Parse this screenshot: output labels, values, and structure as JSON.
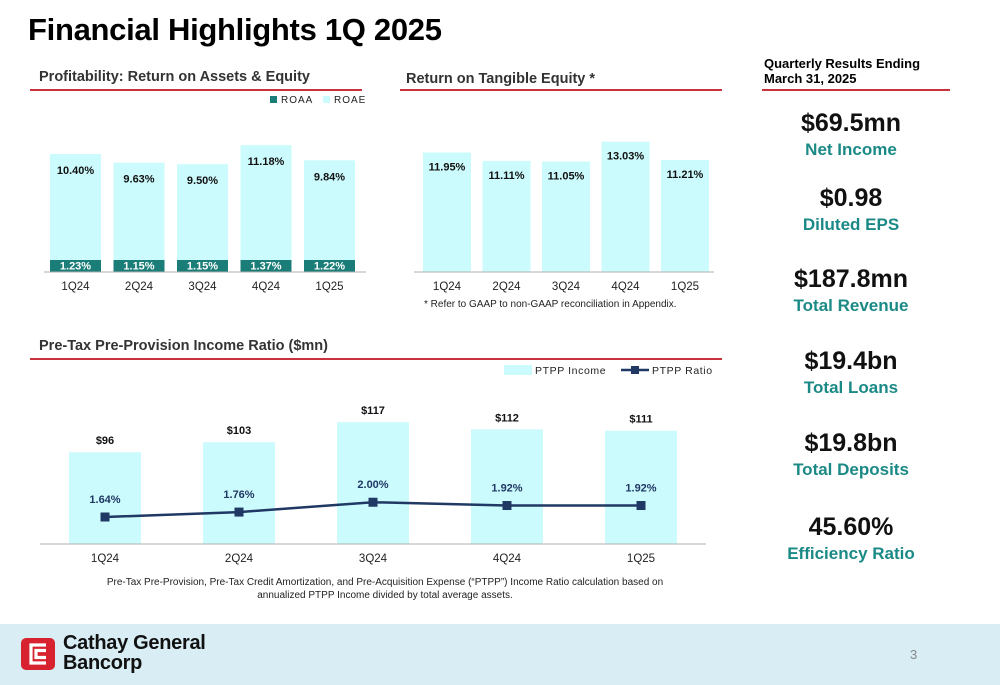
{
  "title": "Financial Highlights 1Q 2025",
  "sections": {
    "profitability": "Profitability: Return on Assets & Equity",
    "rote": "Return on Tangible Equity *",
    "pptp": "Pre-Tax Pre-Provision Income Ratio ($mn)"
  },
  "kpi": {
    "header_line1": "Quarterly Results Ending",
    "header_line2": "March 31, 2025",
    "items": [
      {
        "value": "$69.5mn",
        "label": "Net Income"
      },
      {
        "value": "$0.98",
        "label": "Diluted EPS"
      },
      {
        "value": "$187.8mn",
        "label": "Total Revenue"
      },
      {
        "value": "$19.4bn",
        "label": "Total Loans"
      },
      {
        "value": "$19.8bn",
        "label": "Total Deposits"
      },
      {
        "value": "45.60%",
        "label": "Efficiency Ratio"
      }
    ]
  },
  "footnotes": {
    "rote_note": "* Refer to GAAP to non-GAAP reconciliation in Appendix.",
    "pptp_note_line1": "Pre-Tax Pre-Provision, Pre-Tax Credit Amortization, and Pre-Acquisition Expense (“PTPP”) Income Ratio calculation based on",
    "pptp_note_line2": "annualized PTPP Income divided by total average assets."
  },
  "brand": {
    "line1": "Cathay General",
    "line2": "Bancorp",
    "logo_color": "#d6232f"
  },
  "page_number": "3",
  "colors": {
    "accent_red": "#c8323c",
    "teal": "#1b8a86",
    "light_cyan": "#ccfbfd",
    "navy": "#1f3864"
  },
  "chart_data": [
    {
      "type": "bar",
      "categories": [
        "1Q24",
        "2Q24",
        "3Q24",
        "4Q24",
        "1Q25"
      ],
      "series": [
        {
          "name": "ROAA",
          "values": [
            1.23,
            1.15,
            1.15,
            1.37,
            1.22
          ],
          "labels": [
            "1.23%",
            "1.15%",
            "1.15%",
            "1.37%",
            "1.22%"
          ],
          "color": "#1b7d78"
        },
        {
          "name": "ROAE",
          "values": [
            10.4,
            9.63,
            9.5,
            11.18,
            9.84
          ],
          "labels": [
            "10.40%",
            "9.63%",
            "9.50%",
            "11.18%",
            "9.84%"
          ],
          "color": "#ccfbfd"
        }
      ],
      "legend": "top-right",
      "grid": false
    },
    {
      "type": "bar",
      "categories": [
        "1Q24",
        "2Q24",
        "3Q24",
        "4Q24",
        "1Q25"
      ],
      "series": [
        {
          "values": [
            11.95,
            11.11,
            11.05,
            13.03,
            11.21
          ],
          "labels": [
            "11.95%",
            "11.11%",
            "11.05%",
            "13.03%",
            "11.21%"
          ],
          "color": "#ccfbfd"
        }
      ],
      "grid": false
    },
    {
      "type": "bar",
      "categories": [
        "1Q24",
        "2Q24",
        "3Q24",
        "4Q24",
        "1Q25"
      ],
      "series": [
        {
          "name": "PTPP Income",
          "values": [
            96,
            103,
            117,
            112,
            111
          ],
          "labels": [
            "$96",
            "$103",
            "$117",
            "$112",
            "$111"
          ],
          "color": "#ccfbfd"
        },
        {
          "name": "PTPP Ratio",
          "type": "line",
          "values": [
            1.64,
            1.76,
            2.0,
            1.92,
            1.92
          ],
          "labels": [
            "1.64%",
            "1.76%",
            "2.00%",
            "1.92%",
            "1.92%"
          ],
          "color": "#1f3864"
        }
      ],
      "legend": "top-right",
      "grid": false
    }
  ]
}
